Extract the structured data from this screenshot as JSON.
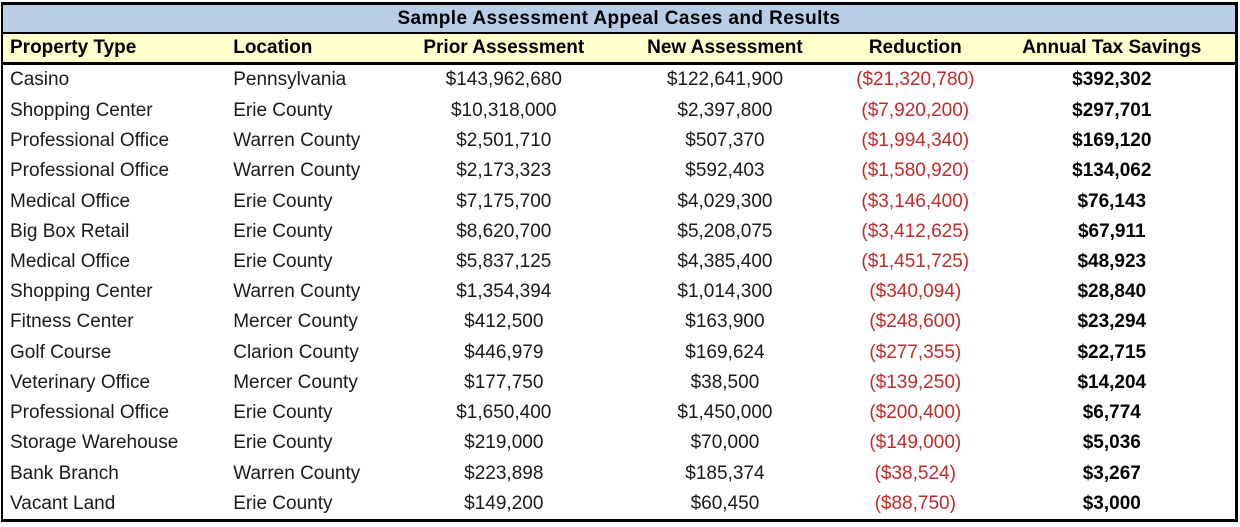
{
  "colors": {
    "title_bg": "#B9CDE4",
    "header_bg": "#FFFFCC",
    "reduction_red": "#C02B2B",
    "border": "#000000",
    "row_bg": "#FFFFFF"
  },
  "chart_data": {
    "type": "table",
    "title": "Sample Assessment Appeal Cases and Results",
    "columns": [
      "Property Type",
      "Location",
      "Prior Assessment",
      "New Assessment",
      "Reduction",
      "Annual Tax Savings"
    ],
    "rows": [
      [
        "Casino",
        "Pennsylvania",
        "$143,962,680",
        "$122,641,900",
        "($21,320,780)",
        "$392,302"
      ],
      [
        "Shopping Center",
        "Erie County",
        "$10,318,000",
        "$2,397,800",
        "($7,920,200)",
        "$297,701"
      ],
      [
        "Professional Office",
        "Warren County",
        "$2,501,710",
        "$507,370",
        "($1,994,340)",
        "$169,120"
      ],
      [
        "Professional Office",
        "Warren County",
        "$2,173,323",
        "$592,403",
        "($1,580,920)",
        "$134,062"
      ],
      [
        "Medical Office",
        "Erie County",
        "$7,175,700",
        "$4,029,300",
        "($3,146,400)",
        "$76,143"
      ],
      [
        "Big Box Retail",
        "Erie County",
        "$8,620,700",
        "$5,208,075",
        "($3,412,625)",
        "$67,911"
      ],
      [
        "Medical Office",
        "Erie County",
        "$5,837,125",
        "$4,385,400",
        "($1,451,725)",
        "$48,923"
      ],
      [
        "Shopping Center",
        "Warren County",
        "$1,354,394",
        "$1,014,300",
        "($340,094)",
        "$28,840"
      ],
      [
        "Fitness Center",
        "Mercer County",
        "$412,500",
        "$163,900",
        "($248,600)",
        "$23,294"
      ],
      [
        "Golf Course",
        "Clarion County",
        "$446,979",
        "$169,624",
        "($277,355)",
        "$22,715"
      ],
      [
        "Veterinary Office",
        "Mercer County",
        "$177,750",
        "$38,500",
        "($139,250)",
        "$14,204"
      ],
      [
        "Professional Office",
        "Erie County",
        "$1,650,400",
        "$1,450,000",
        "($200,400)",
        "$6,774"
      ],
      [
        "Storage Warehouse",
        "Erie County",
        "$219,000",
        "$70,000",
        "($149,000)",
        "$5,036"
      ],
      [
        "Bank Branch",
        "Warren County",
        "$223,898",
        "$185,374",
        "($38,524)",
        "$3,267"
      ],
      [
        "Vacant Land",
        "Erie County",
        "$149,200",
        "$60,450",
        "($88,750)",
        "$3,000"
      ]
    ]
  },
  "cell_names": [
    "property-type-cell",
    "location-cell",
    "prior-assessment-cell",
    "new-assessment-cell",
    "reduction-cell",
    "annual-tax-savings-cell"
  ]
}
